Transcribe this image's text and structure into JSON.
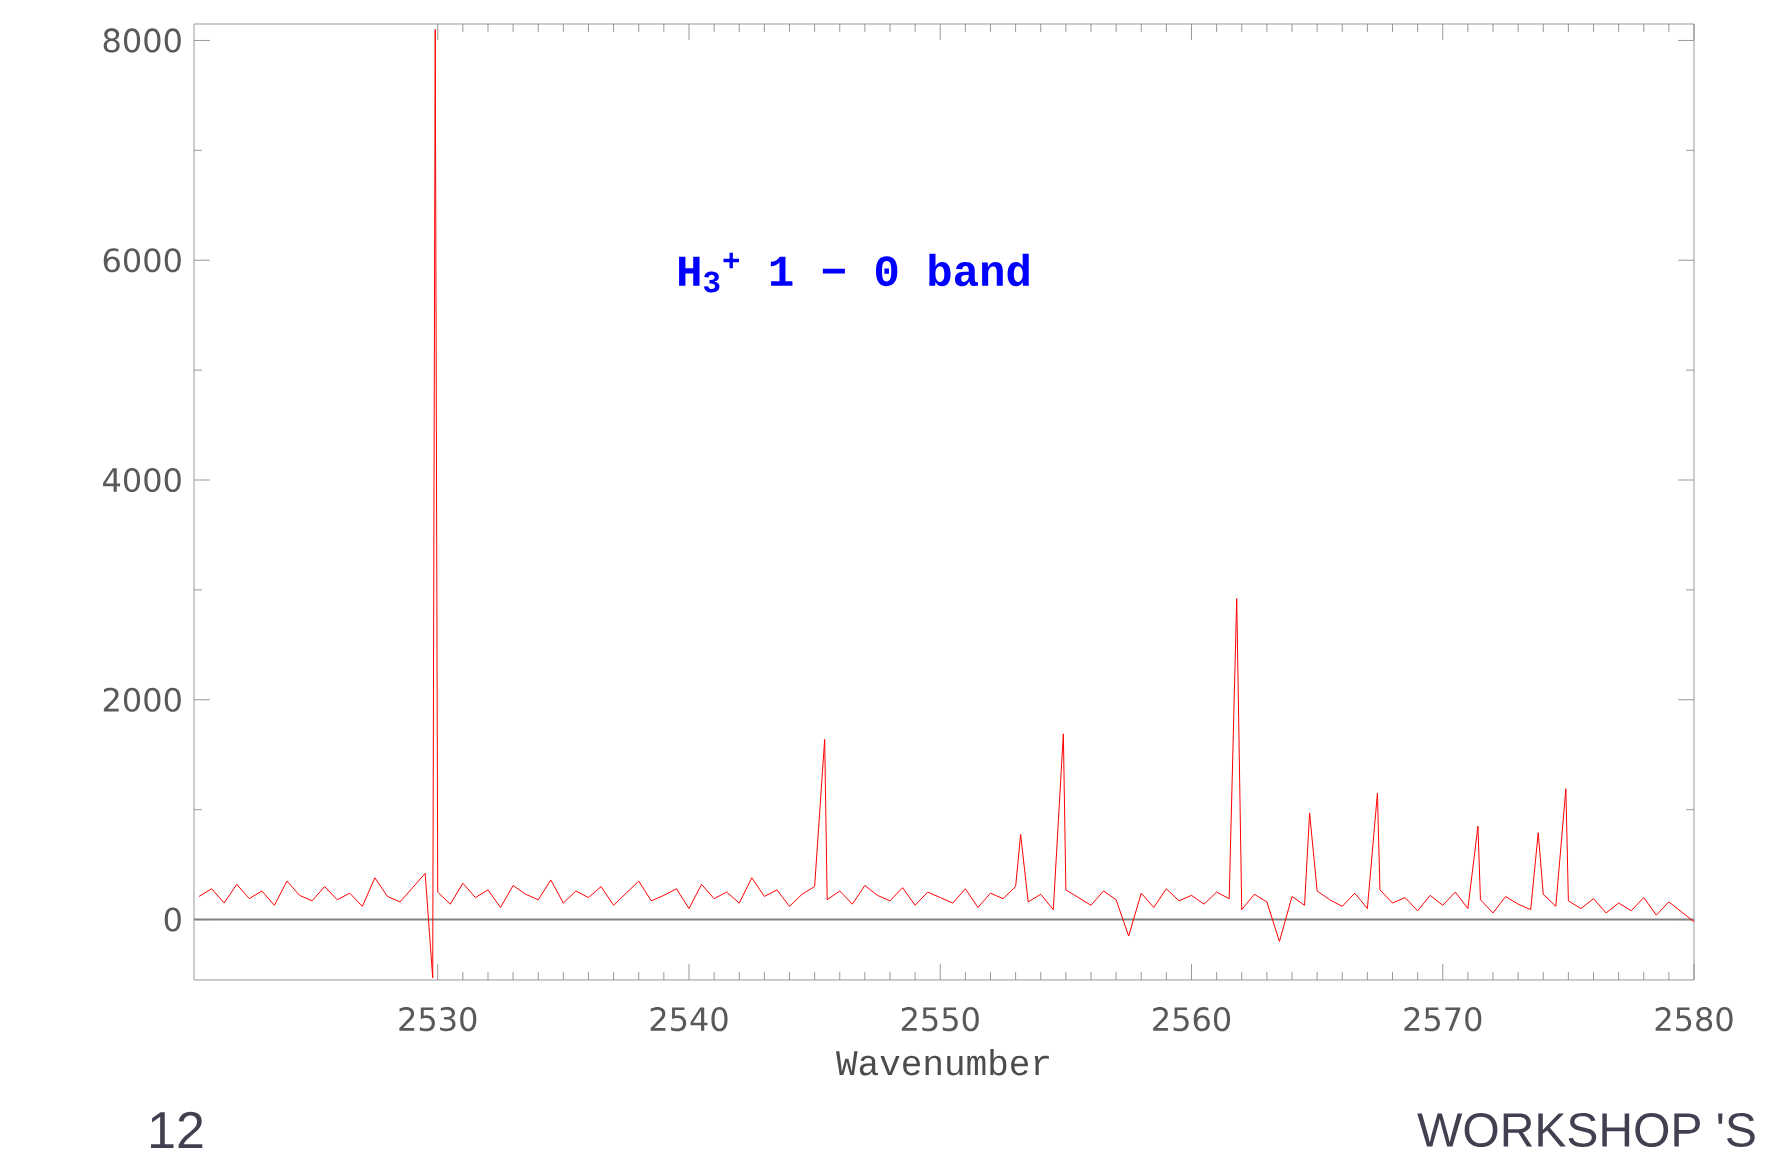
{
  "chart_data": {
    "type": "line",
    "xlabel": "Wavenumber",
    "annotations": [
      "H$_{3}$$^{+}$ 1 − 0 band",
      "12",
      "WORKSHOP 'S"
    ],
    "xlim": [
      2520.3,
      2580
    ],
    "ylim": [
      -550,
      8150
    ],
    "xticks": [
      2530,
      2540,
      2550,
      2560,
      2570,
      2580
    ],
    "yticks": [
      0,
      2000,
      4000,
      6000,
      8000
    ],
    "marker": "none",
    "line_style": "solid",
    "ref_lines": [
      {
        "axis": "y",
        "value": 0,
        "color": "#808080"
      }
    ],
    "series": [
      {
        "color": "#ff0000",
        "x": [
          2520.5,
          2521,
          2521.5,
          2522,
          2522.5,
          2523,
          2523.5,
          2524,
          2524.5,
          2525,
          2525.5,
          2526,
          2526.5,
          2527,
          2527.5,
          2528,
          2528.5,
          2529,
          2529.5,
          2529.8,
          2529.9,
          2530,
          2530.5,
          2531,
          2531.5,
          2532,
          2532.5,
          2533,
          2533.5,
          2534,
          2534.5,
          2535,
          2535.5,
          2536,
          2536.5,
          2537,
          2537.5,
          2538,
          2538.5,
          2539,
          2539.5,
          2540,
          2540.5,
          2541,
          2541.5,
          2542,
          2542.5,
          2543,
          2543.5,
          2544,
          2544.5,
          2545,
          2545.4,
          2545.5,
          2546,
          2546.5,
          2547,
          2547.5,
          2548,
          2548.5,
          2549,
          2549.5,
          2550,
          2550.5,
          2551,
          2551.5,
          2552,
          2552.5,
          2553,
          2553.2,
          2553.5,
          2554,
          2554.5,
          2554.9,
          2555,
          2555.5,
          2556,
          2556.5,
          2557,
          2557.5,
          2558,
          2558.5,
          2559,
          2559.5,
          2560,
          2560.5,
          2561,
          2561.5,
          2561.8,
          2562,
          2562.5,
          2563,
          2563.5,
          2564,
          2564.5,
          2564.7,
          2565,
          2565.5,
          2566,
          2566.5,
          2567,
          2567.4,
          2567.5,
          2568,
          2568.5,
          2569,
          2569.5,
          2570,
          2570.5,
          2571,
          2571.4,
          2571.5,
          2572,
          2572.5,
          2573,
          2573.5,
          2573.8,
          2574,
          2574.5,
          2574.9,
          2575,
          2575.5,
          2576,
          2576.5,
          2577,
          2577.5,
          2578,
          2578.5,
          2579,
          2579.5,
          2580
        ],
        "values": [
          210,
          280,
          150,
          320,
          190,
          260,
          130,
          350,
          220,
          170,
          300,
          180,
          240,
          120,
          380,
          210,
          160,
          290,
          420,
          -530,
          8100,
          250,
          140,
          330,
          200,
          270,
          110,
          310,
          230,
          180,
          360,
          150,
          260,
          200,
          300,
          130,
          240,
          350,
          170,
          220,
          280,
          100,
          320,
          190,
          250,
          150,
          380,
          210,
          270,
          120,
          230,
          300,
          1640,
          180,
          260,
          140,
          310,
          220,
          170,
          290,
          130,
          250,
          200,
          150,
          280,
          110,
          240,
          190,
          300,
          775,
          160,
          230,
          90,
          1690,
          270,
          200,
          130,
          260,
          180,
          -150,
          240,
          110,
          280,
          170,
          220,
          140,
          250,
          190,
          2920,
          90,
          230,
          160,
          -200,
          210,
          130,
          970,
          260,
          180,
          120,
          240,
          100,
          1150,
          270,
          150,
          200,
          80,
          220,
          130,
          250,
          100,
          850,
          180,
          60,
          210,
          140,
          90,
          790,
          230,
          120,
          1190,
          170,
          100,
          190,
          60,
          150,
          80,
          200,
          40,
          160,
          70,
          -20
        ]
      }
    ]
  }
}
